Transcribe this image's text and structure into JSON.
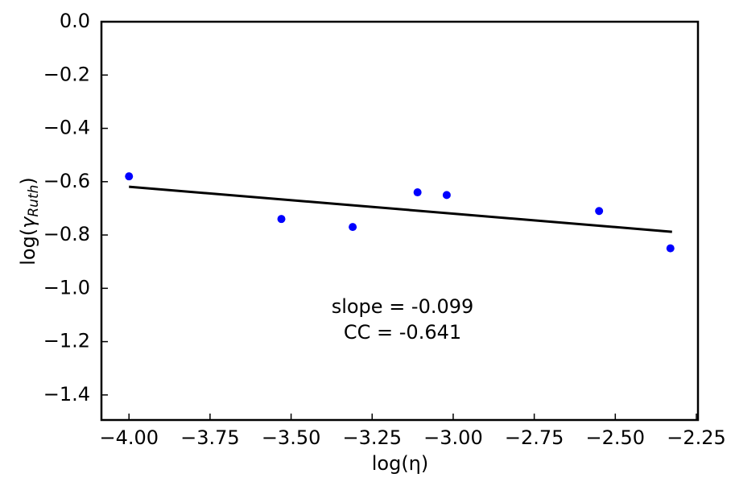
{
  "chart_data": {
    "type": "scatter",
    "xlabel": "log(η)",
    "ylabel": [
      "log(",
      "γ",
      "Ruth",
      ")"
    ],
    "annotations": [
      "slope = -0.099",
      "CC = -0.641"
    ],
    "xlim": [
      -4.085,
      -2.245
    ],
    "ylim": [
      -1.494,
      0
    ],
    "xticks": [
      {
        "value": -4.0,
        "label": "−4.00"
      },
      {
        "value": -3.75,
        "label": "−3.75"
      },
      {
        "value": -3.5,
        "label": "−3.50"
      },
      {
        "value": -3.25,
        "label": "−3.25"
      },
      {
        "value": -3.0,
        "label": "−3.00"
      },
      {
        "value": -2.75,
        "label": "−2.75"
      },
      {
        "value": -2.5,
        "label": "−2.50"
      },
      {
        "value": -2.25,
        "label": "−2.25"
      }
    ],
    "yticks": [
      {
        "value": 0,
        "label": "0.0"
      },
      {
        "value": -0.2,
        "label": "−0.2"
      },
      {
        "value": -0.4,
        "label": "−0.4"
      },
      {
        "value": -0.6,
        "label": "−0.6"
      },
      {
        "value": -0.8,
        "label": "−0.8"
      },
      {
        "value": -1.0,
        "label": "−1.0"
      },
      {
        "value": -1.2,
        "label": "−1.2"
      },
      {
        "value": -1.4,
        "label": "−1.4"
      }
    ],
    "series": [
      {
        "type": "scatter",
        "color": "#0000ff",
        "x": [
          -4.0,
          -3.53,
          -3.31,
          -3.11,
          -3.02,
          -2.55,
          -2.33
        ],
        "values": [
          -0.58,
          -0.74,
          -0.77,
          -0.64,
          -0.65,
          -0.71,
          -0.85
        ]
      },
      {
        "type": "line",
        "color": "#000000",
        "x": [
          -4.0,
          -2.325
        ],
        "values": [
          -0.619,
          -0.788
        ]
      }
    ]
  }
}
